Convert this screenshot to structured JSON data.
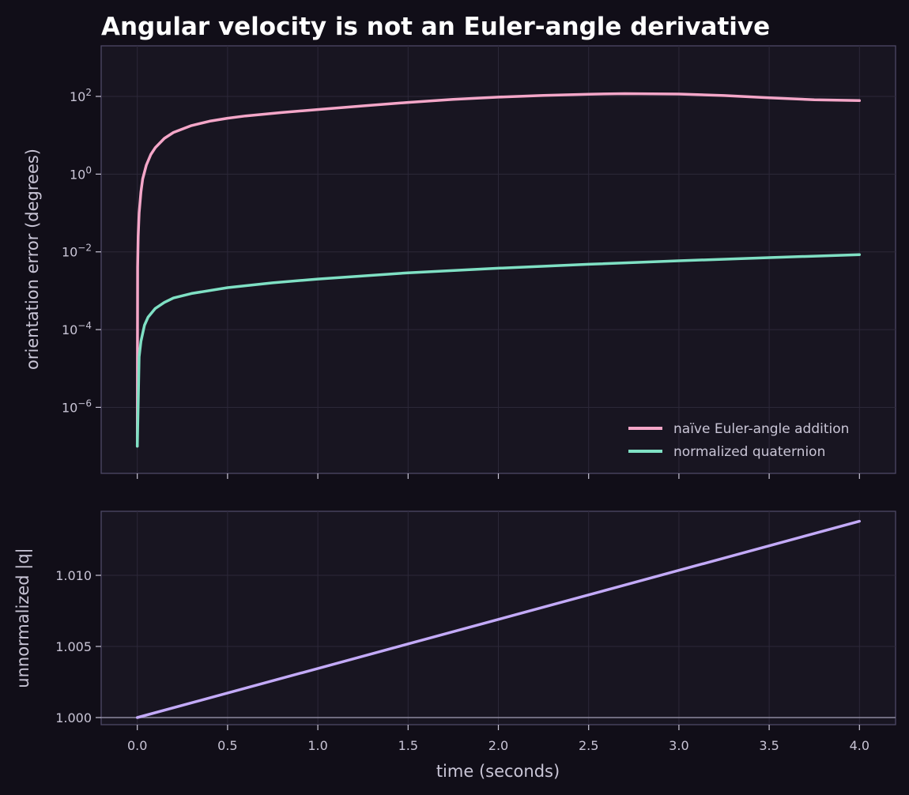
{
  "figure": {
    "title": "Angular velocity is not an Euler-angle derivative",
    "background": "#110e18",
    "panel_background": "#181521"
  },
  "chart_data": [
    {
      "type": "line",
      "yscale": "log",
      "ylabel": "orientation error (degrees)",
      "xlabel": "",
      "xlim": [
        -0.2,
        4.2
      ],
      "ylim": [
        2e-08,
        2000
      ],
      "ytick_labels": [
        {
          "value": 1e-06,
          "base": "10",
          "exp": "−6"
        },
        {
          "value": 0.0001,
          "base": "10",
          "exp": "−4"
        },
        {
          "value": 0.01,
          "base": "10",
          "exp": "−2"
        },
        {
          "value": 1,
          "base": "10",
          "exp": "0"
        },
        {
          "value": 100,
          "base": "10",
          "exp": "2"
        }
      ],
      "xticks": [
        0,
        0.5,
        1,
        1.5,
        2,
        2.5,
        3,
        3.5,
        4
      ],
      "grid": true,
      "legend_position": "lower-right",
      "series": [
        {
          "name": "naïve Euler-angle addition",
          "color": "#f4a6c8",
          "x": [
            0,
            0.002,
            0.005,
            0.01,
            0.02,
            0.03,
            0.05,
            0.075,
            0.1,
            0.15,
            0.2,
            0.3,
            0.4,
            0.5,
            0.6,
            0.8,
            1.0,
            1.25,
            1.5,
            1.75,
            2.0,
            2.25,
            2.5,
            2.7,
            3.0,
            3.25,
            3.5,
            3.75,
            4.0
          ],
          "y": [
            1e-07,
            0.004,
            0.025,
            0.1,
            0.35,
            0.75,
            1.7,
            3.2,
            4.8,
            8.3,
            11.8,
            17.8,
            23,
            27.5,
            31.5,
            38.5,
            46,
            57,
            70,
            84,
            96,
            106,
            114,
            118,
            115,
            105,
            92,
            82,
            78
          ]
        },
        {
          "name": "normalized quaternion",
          "color": "#7fe0c4",
          "x": [
            0,
            0.01,
            0.02,
            0.04,
            0.06,
            0.1,
            0.15,
            0.2,
            0.3,
            0.5,
            0.75,
            1.0,
            1.5,
            2.0,
            2.5,
            3.0,
            3.5,
            4.0
          ],
          "y": [
            1e-07,
            2e-05,
            5e-05,
            0.00013,
            0.00021,
            0.00035,
            0.0005,
            0.00065,
            0.00085,
            0.0012,
            0.0016,
            0.002,
            0.0029,
            0.0038,
            0.0048,
            0.0059,
            0.0071,
            0.0085
          ]
        }
      ]
    },
    {
      "type": "line",
      "ylabel": "unnormalized |q|",
      "xlabel": "time (seconds)",
      "xlim": [
        -0.2,
        4.2
      ],
      "ylim": [
        0.9995,
        1.0145
      ],
      "yticks": [
        1.0,
        1.005,
        1.01
      ],
      "ytick_labels": [
        "1.000",
        "1.005",
        "1.010"
      ],
      "xticks": [
        0,
        0.5,
        1,
        1.5,
        2,
        2.5,
        3,
        3.5,
        4
      ],
      "xtick_labels": [
        "0.0",
        "0.5",
        "1.0",
        "1.5",
        "2.0",
        "2.5",
        "3.0",
        "3.5",
        "4.0"
      ],
      "grid": true,
      "reference_line": {
        "y": 1.0,
        "color": "#8e89a0"
      },
      "series": [
        {
          "color": "#c3aaf8",
          "x": [
            0,
            4
          ],
          "y": [
            1.0,
            1.0138
          ]
        }
      ]
    }
  ]
}
